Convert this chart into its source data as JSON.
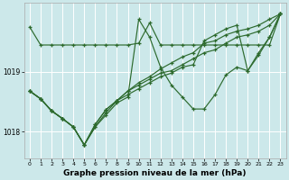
{
  "bg_color": "#cce8ea",
  "grid_color": "#ffffff",
  "line_color": "#2d6a2d",
  "xlabel": "Graphe pression niveau de la mer (hPa)",
  "xlabel_fontsize": 6.5,
  "xlim": [
    -0.5,
    23.5
  ],
  "ylim": [
    1017.55,
    1020.15
  ],
  "yticks": [
    1018,
    1019
  ],
  "xticks": [
    0,
    1,
    2,
    3,
    4,
    5,
    6,
    7,
    8,
    9,
    10,
    11,
    12,
    13,
    14,
    15,
    16,
    17,
    18,
    19,
    20,
    21,
    22,
    23
  ],
  "series": [
    [
      1019.75,
      1019.45,
      1019.45,
      1019.45,
      1019.45,
      1019.45,
      1019.45,
      1019.45,
      1019.45,
      1019.45,
      1019.48,
      1019.82,
      1019.45,
      1019.45,
      1019.45,
      1019.45,
      1019.45,
      1019.45,
      1019.45,
      1019.45,
      1019.45,
      1019.45,
      1019.45,
      1019.97
    ],
    [
      1018.68,
      1018.55,
      1018.35,
      1018.22,
      1018.08,
      1017.78,
      1018.08,
      1018.28,
      1018.48,
      1018.58,
      1019.88,
      1019.58,
      1019.08,
      1018.78,
      1018.58,
      1018.38,
      1018.38,
      1018.62,
      1018.95,
      1019.08,
      1019.02,
      1019.28,
      1019.58,
      1019.97
    ],
    [
      1018.68,
      1018.55,
      1018.35,
      1018.22,
      1018.08,
      1017.78,
      1018.08,
      1018.32,
      1018.52,
      1018.68,
      1018.82,
      1018.92,
      1019.05,
      1019.15,
      1019.25,
      1019.32,
      1019.48,
      1019.52,
      1019.62,
      1019.68,
      1019.72,
      1019.78,
      1019.88,
      1019.97
    ],
    [
      1018.68,
      1018.55,
      1018.35,
      1018.22,
      1018.08,
      1017.78,
      1018.12,
      1018.37,
      1018.52,
      1018.68,
      1018.78,
      1018.88,
      1018.98,
      1019.02,
      1019.12,
      1019.22,
      1019.32,
      1019.37,
      1019.48,
      1019.58,
      1019.62,
      1019.68,
      1019.78,
      1019.97
    ],
    [
      1018.68,
      1018.55,
      1018.35,
      1018.22,
      1018.08,
      1017.78,
      1018.12,
      1018.37,
      1018.52,
      1018.62,
      1018.72,
      1018.82,
      1018.92,
      1018.98,
      1019.08,
      1019.12,
      1019.52,
      1019.62,
      1019.72,
      1019.78,
      1019.02,
      1019.32,
      1019.58,
      1019.97
    ]
  ],
  "marker_size": 3.0,
  "linewidth": 0.85
}
